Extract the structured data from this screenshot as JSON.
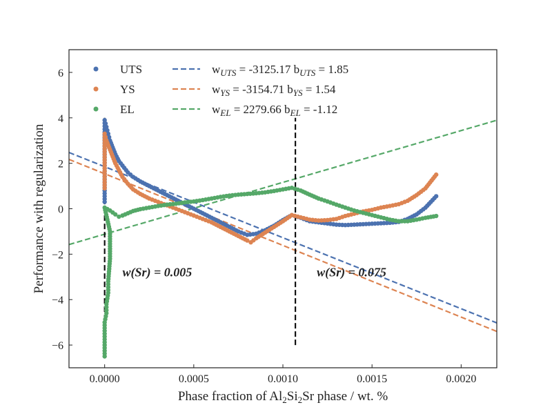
{
  "chart_data": {
    "type": "scatter",
    "title": "",
    "xlabel": "Phase fraction of Al2Si2Sr phase / wt. %",
    "xlabel_parts": {
      "pre": "Phase fraction of Al",
      "sub1": "2",
      "mid": "Si",
      "sub2": "2",
      "post": "Sr phase / wt. %"
    },
    "ylabel": "Performance with regularization",
    "xlim": [
      -0.0002,
      0.0022
    ],
    "ylim": [
      -7,
      7
    ],
    "xticks": [
      0.0,
      0.0005,
      0.001,
      0.0015,
      0.002
    ],
    "xtick_labels": [
      "0.0000",
      "0.0005",
      "0.0010",
      "0.0015",
      "0.0020"
    ],
    "yticks": [
      -6,
      -4,
      -2,
      0,
      2,
      4,
      6
    ],
    "ytick_labels": [
      "−6",
      "−4",
      "−2",
      "0",
      "2",
      "4",
      "6"
    ],
    "grid": false,
    "legend_position": "top-left",
    "series": [
      {
        "name": "UTS",
        "color": "#4c72b0",
        "kind": "scatter",
        "points": [
          [
            0.0,
            0.3
          ],
          [
            0.0,
            0.8
          ],
          [
            0.0,
            1.3
          ],
          [
            0.0,
            1.9
          ],
          [
            0.0,
            2.5
          ],
          [
            0.0,
            3.0
          ],
          [
            0.0,
            3.5
          ],
          [
            0.0,
            3.9
          ],
          [
            1e-05,
            3.6
          ],
          [
            2e-05,
            3.3
          ],
          [
            3e-05,
            3.0
          ],
          [
            4e-05,
            2.8
          ],
          [
            5e-05,
            2.6
          ],
          [
            6e-05,
            2.4
          ],
          [
            8e-05,
            2.1
          ],
          [
            0.0001,
            1.9
          ],
          [
            0.00013,
            1.6
          ],
          [
            0.00016,
            1.4
          ],
          [
            0.0002,
            1.2
          ],
          [
            0.00025,
            1.0
          ],
          [
            0.0003,
            0.8
          ],
          [
            0.00035,
            0.6
          ],
          [
            0.0004,
            0.4
          ],
          [
            0.00045,
            0.2
          ],
          [
            0.0005,
            0.0
          ],
          [
            0.00055,
            -0.2
          ],
          [
            0.0006,
            -0.4
          ],
          [
            0.00065,
            -0.6
          ],
          [
            0.0007,
            -0.8
          ],
          [
            0.00075,
            -1.0
          ],
          [
            0.0008,
            -1.15
          ],
          [
            0.00085,
            -1.1
          ],
          [
            0.0009,
            -0.95
          ],
          [
            0.00095,
            -0.75
          ],
          [
            0.001,
            -0.5
          ],
          [
            0.00105,
            -0.28
          ],
          [
            0.0011,
            -0.4
          ],
          [
            0.00115,
            -0.55
          ],
          [
            0.0012,
            -0.6
          ],
          [
            0.00125,
            -0.65
          ],
          [
            0.0013,
            -0.7
          ],
          [
            0.00135,
            -0.72
          ],
          [
            0.0014,
            -0.7
          ],
          [
            0.00145,
            -0.68
          ],
          [
            0.0015,
            -0.66
          ],
          [
            0.00155,
            -0.64
          ],
          [
            0.0016,
            -0.62
          ],
          [
            0.00165,
            -0.58
          ],
          [
            0.0017,
            -0.45
          ],
          [
            0.00175,
            -0.25
          ],
          [
            0.0018,
            0.05
          ],
          [
            0.00186,
            0.55
          ]
        ]
      },
      {
        "name": "YS",
        "color": "#dd8452",
        "kind": "scatter",
        "points": [
          [
            0.0,
            0.9
          ],
          [
            0.0,
            1.4
          ],
          [
            0.0,
            1.9
          ],
          [
            0.0,
            2.4
          ],
          [
            0.0,
            2.9
          ],
          [
            0.0,
            3.3
          ],
          [
            1e-05,
            3.0
          ],
          [
            2e-05,
            2.8
          ],
          [
            3e-05,
            2.6
          ],
          [
            4e-05,
            2.4
          ],
          [
            5e-05,
            2.2
          ],
          [
            6e-05,
            2.0
          ],
          [
            8e-05,
            1.7
          ],
          [
            0.0001,
            1.4
          ],
          [
            0.00013,
            1.1
          ],
          [
            0.00016,
            0.85
          ],
          [
            0.0002,
            0.65
          ],
          [
            0.00025,
            0.45
          ],
          [
            0.0003,
            0.3
          ],
          [
            0.00035,
            0.15
          ],
          [
            0.0004,
            0.0
          ],
          [
            0.00045,
            -0.15
          ],
          [
            0.0005,
            -0.3
          ],
          [
            0.00055,
            -0.45
          ],
          [
            0.0006,
            -0.6
          ],
          [
            0.00065,
            -0.8
          ],
          [
            0.0007,
            -1.0
          ],
          [
            0.00075,
            -1.2
          ],
          [
            0.0008,
            -1.4
          ],
          [
            0.00082,
            -1.48
          ],
          [
            0.00085,
            -1.3
          ],
          [
            0.0009,
            -1.05
          ],
          [
            0.00095,
            -0.8
          ],
          [
            0.001,
            -0.55
          ],
          [
            0.00105,
            -0.28
          ],
          [
            0.0011,
            -0.38
          ],
          [
            0.00115,
            -0.48
          ],
          [
            0.0012,
            -0.52
          ],
          [
            0.00125,
            -0.5
          ],
          [
            0.0013,
            -0.45
          ],
          [
            0.00135,
            -0.32
          ],
          [
            0.0014,
            -0.22
          ],
          [
            0.00145,
            -0.12
          ],
          [
            0.0015,
            -0.05
          ],
          [
            0.00155,
            0.05
          ],
          [
            0.0016,
            0.12
          ],
          [
            0.00165,
            0.2
          ],
          [
            0.0017,
            0.35
          ],
          [
            0.00175,
            0.6
          ],
          [
            0.0018,
            0.9
          ],
          [
            0.00186,
            1.5
          ]
        ]
      },
      {
        "name": "EL",
        "color": "#55a868",
        "kind": "scatter",
        "points": [
          [
            0.0,
            -6.5
          ],
          [
            0.0,
            -6.0
          ],
          [
            0.0,
            -5.5
          ],
          [
            0.0,
            -5.0
          ],
          [
            1e-05,
            -4.6
          ],
          [
            1e-05,
            -4.2
          ],
          [
            2e-05,
            -3.7
          ],
          [
            2e-05,
            -3.2
          ],
          [
            3e-05,
            -2.2
          ],
          [
            3e-05,
            -1.0
          ],
          [
            0.0,
            0.05
          ],
          [
            3e-05,
            -0.08
          ],
          [
            6e-05,
            -0.25
          ],
          [
            8e-05,
            -0.35
          ],
          [
            0.0001,
            -0.3
          ],
          [
            0.00013,
            -0.2
          ],
          [
            0.00016,
            -0.1
          ],
          [
            0.0002,
            -0.02
          ],
          [
            0.00025,
            0.05
          ],
          [
            0.0003,
            0.12
          ],
          [
            0.00035,
            0.18
          ],
          [
            0.0004,
            0.22
          ],
          [
            0.00045,
            0.28
          ],
          [
            0.0005,
            0.32
          ],
          [
            0.00055,
            0.38
          ],
          [
            0.0006,
            0.45
          ],
          [
            0.00065,
            0.52
          ],
          [
            0.0007,
            0.58
          ],
          [
            0.00075,
            0.62
          ],
          [
            0.0008,
            0.65
          ],
          [
            0.00085,
            0.68
          ],
          [
            0.0009,
            0.72
          ],
          [
            0.00095,
            0.78
          ],
          [
            0.001,
            0.85
          ],
          [
            0.00105,
            0.92
          ],
          [
            0.0011,
            0.8
          ],
          [
            0.00115,
            0.62
          ],
          [
            0.0012,
            0.45
          ],
          [
            0.00125,
            0.32
          ],
          [
            0.0013,
            0.18
          ],
          [
            0.00135,
            0.05
          ],
          [
            0.0014,
            -0.08
          ],
          [
            0.00145,
            -0.18
          ],
          [
            0.0015,
            -0.28
          ],
          [
            0.00155,
            -0.38
          ],
          [
            0.0016,
            -0.48
          ],
          [
            0.00165,
            -0.55
          ],
          [
            0.0017,
            -0.55
          ],
          [
            0.00175,
            -0.48
          ],
          [
            0.0018,
            -0.4
          ],
          [
            0.00186,
            -0.32
          ]
        ]
      }
    ],
    "fit_lines": [
      {
        "label_w": "w",
        "sub_w": "UTS",
        "w_value": "= -3125.17",
        "label_b": "b",
        "sub_b": "UTS",
        "b_value": "= 1.85",
        "w": -3125.17,
        "b": 1.85,
        "color": "#4c72b0",
        "style": "dashed"
      },
      {
        "label_w": "w",
        "sub_w": "YS",
        "w_value": "= -3154.71",
        "label_b": "b",
        "sub_b": "YS",
        "b_value": "= 1.54",
        "w": -3154.71,
        "b": 1.54,
        "color": "#dd8452",
        "style": "dashed"
      },
      {
        "label_w": "w",
        "sub_w": "EL",
        "w_value": "= 2279.66",
        "label_b": "b",
        "sub_b": "EL",
        "b_value": "= -1.12",
        "w": 2279.66,
        "b": -1.12,
        "color": "#55a868",
        "style": "dashed"
      }
    ],
    "vertical_markers": [
      {
        "x": 0.0,
        "y_range": [
          -6,
          4
        ],
        "color": "#111111",
        "style": "dashed"
      },
      {
        "x": 0.00107,
        "y_range": [
          -6,
          4
        ],
        "color": "#111111",
        "style": "dashed"
      }
    ],
    "annotations": [
      {
        "text": "w(Sr) = 0.005",
        "x": 0.0001,
        "y": -2.8
      },
      {
        "text": "w(Sr) = 0.075",
        "x": 0.00119,
        "y": -2.8
      }
    ]
  }
}
